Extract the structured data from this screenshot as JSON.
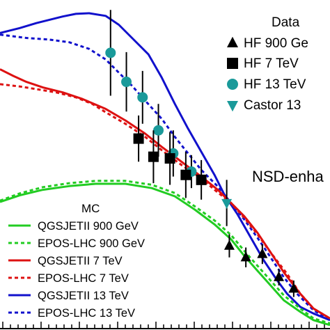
{
  "chart_data": {
    "type": "line",
    "annotation": "NSD-enha",
    "data_legend": {
      "title": "Data",
      "entries": [
        {
          "label": "HF 900 Ge",
          "marker": "triangle-up",
          "color": "#000000"
        },
        {
          "label": "HF 7 TeV",
          "marker": "square",
          "color": "#000000"
        },
        {
          "label": "HF 13 TeV",
          "marker": "circle",
          "color": "#1a9a9a"
        },
        {
          "label": "Castor 13",
          "marker": "triangle-down",
          "color": "#1a9a9a"
        }
      ]
    },
    "mc_legend": {
      "title": "MC",
      "entries": [
        {
          "label": "QGSJETII 900 GeV",
          "color": "#22cc22",
          "dash": "solid"
        },
        {
          "label": "EPOS-LHC 900 GeV",
          "color": "#22cc22",
          "dash": "dotted"
        },
        {
          "label": "QGSJETII 7 TeV",
          "color": "#dd1111",
          "dash": "solid"
        },
        {
          "label": "EPOS-LHC 7 TeV",
          "color": "#dd1111",
          "dash": "dotted"
        },
        {
          "label": "QGSJETII 13 TeV",
          "color": "#1111cc",
          "dash": "solid"
        },
        {
          "label": "EPOS-LHC 13 TeV",
          "color": "#1111cc",
          "dash": "dotted"
        }
      ]
    },
    "xlim": [
      0,
      100
    ],
    "ylim": [
      0,
      100
    ],
    "series": [
      {
        "name": "QGSJETII 13 TeV",
        "color": "#1111cc",
        "dash": "solid",
        "x": [
          0,
          6,
          11,
          15,
          19,
          23,
          27,
          32,
          36,
          40,
          45,
          49,
          53,
          57,
          61,
          65,
          68,
          72,
          76,
          80,
          84,
          87,
          91,
          95,
          100
        ],
        "y": [
          90,
          91.5,
          93,
          94,
          95,
          95.8,
          96,
          95.2,
          92.5,
          88.5,
          83.5,
          76.5,
          68.5,
          61,
          54,
          47,
          41,
          35,
          28,
          21,
          15,
          11,
          7,
          5,
          3
        ]
      },
      {
        "name": "EPOS-LHC 13 TeV",
        "color": "#1111cc",
        "dash": "dotted",
        "x": [
          0,
          8,
          15,
          21,
          27,
          32,
          36,
          40,
          44,
          49,
          53,
          57,
          61,
          66,
          70,
          74,
          78,
          82,
          86,
          90,
          95,
          100
        ],
        "y": [
          89.5,
          88.5,
          88,
          87.2,
          85.2,
          82,
          78,
          74,
          69.5,
          64,
          58.5,
          53.5,
          48.5,
          43.5,
          38.5,
          33.5,
          28,
          22,
          16,
          11,
          6,
          3
        ]
      },
      {
        "name": "QGSJETII 7 TeV",
        "color": "#dd1111",
        "dash": "solid",
        "x": [
          0,
          4,
          8,
          13,
          19,
          25,
          32,
          38,
          44,
          49,
          55,
          61,
          66,
          70,
          74,
          78,
          82,
          86,
          91,
          95,
          100
        ],
        "y": [
          79,
          77,
          75.2,
          73.5,
          72,
          70,
          67,
          63.5,
          59.5,
          55.5,
          51,
          46.5,
          42.5,
          38.5,
          34.5,
          29.5,
          23.5,
          17.5,
          11,
          6.5,
          3.5
        ]
      },
      {
        "name": "EPOS-LHC 7 TeV",
        "color": "#dd1111",
        "dash": "dotted",
        "x": [
          0,
          6,
          11,
          17,
          23,
          28,
          32,
          38,
          44,
          49,
          55,
          61,
          65,
          70,
          74,
          78,
          82,
          87,
          91,
          95,
          100
        ],
        "y": [
          74.5,
          73.8,
          73,
          72,
          70.5,
          68.5,
          66,
          62.5,
          58.5,
          54.5,
          50,
          46,
          42.5,
          38.5,
          34,
          29,
          23.5,
          17,
          11,
          6.5,
          3.5
        ]
      },
      {
        "name": "QGSJETII 900 GeV",
        "color": "#22cc22",
        "dash": "solid",
        "x": [
          0,
          6,
          13,
          21,
          29,
          38,
          46,
          53,
          59,
          65,
          70,
          74,
          78,
          82,
          86,
          91,
          95,
          100
        ],
        "y": [
          38.8,
          40.8,
          42.5,
          43.6,
          44.3,
          44.3,
          43,
          40.5,
          36.5,
          32,
          27.5,
          22.5,
          18,
          13.5,
          9,
          5.5,
          3,
          1.5
        ]
      },
      {
        "name": "EPOS-LHC 900 GeV",
        "color": "#22cc22",
        "dash": "dotted",
        "x": [
          0,
          6,
          13,
          21,
          29,
          38,
          46,
          53,
          59,
          65,
          70,
          74,
          78,
          82,
          86,
          91,
          95,
          100
        ],
        "y": [
          39.2,
          41.4,
          43.3,
          44.5,
          45.2,
          45.2,
          44,
          41.5,
          37.5,
          33.2,
          28.8,
          24,
          19.5,
          15,
          10.5,
          6.5,
          3.5,
          2
        ]
      }
    ],
    "data_points": [
      {
        "name": "HF 13 TeV",
        "marker": "circle",
        "color": "#1a9a9a",
        "points": [
          {
            "x": 33.5,
            "y": 84,
            "err": 13
          },
          {
            "x": 38.3,
            "y": 75.2,
            "err": 9
          },
          {
            "x": 43.2,
            "y": 70.5,
            "err": 8
          },
          {
            "x": 48,
            "y": 60.5,
            "err": 8
          },
          {
            "x": 52.5,
            "y": 53.5,
            "err": 7
          },
          {
            "x": 58,
            "y": 48,
            "err": 5
          }
        ]
      },
      {
        "name": "HF 7 TeV",
        "marker": "square",
        "color": "#000000",
        "points": [
          {
            "x": 42,
            "y": 58,
            "err": 7
          },
          {
            "x": 46.5,
            "y": 52.5,
            "err": 8
          },
          {
            "x": 51.5,
            "y": 52,
            "err": 8
          },
          {
            "x": 56.3,
            "y": 47,
            "err": 7
          },
          {
            "x": 61,
            "y": 45.5,
            "err": 6
          }
        ]
      },
      {
        "name": "Castor 13",
        "marker": "triangle-down",
        "color": "#1a9a9a",
        "points": [
          {
            "x": 68.7,
            "y": 38.5,
            "err": 7
          }
        ]
      },
      {
        "name": "HF 900 Ge",
        "marker": "triangle-up",
        "color": "#000000",
        "points": [
          {
            "x": 69.5,
            "y": 25.5,
            "err": 3.5
          },
          {
            "x": 74.5,
            "y": 22,
            "err": 3
          },
          {
            "x": 79.5,
            "y": 23,
            "err": 3
          },
          {
            "x": 84.5,
            "y": 16,
            "err": 2.5
          },
          {
            "x": 89,
            "y": 12.5,
            "err": 2.5
          }
        ]
      }
    ]
  }
}
